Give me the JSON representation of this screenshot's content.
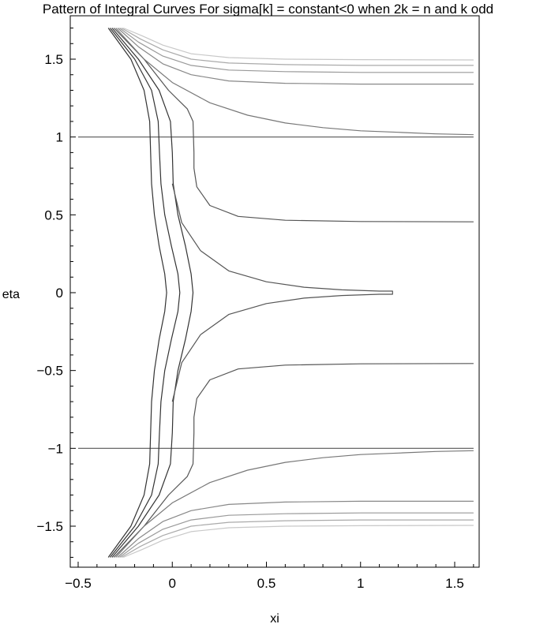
{
  "chart_data": {
    "type": "line",
    "title": "Pattern of Integral Curves For  sigma[k] = constant<0 when 2k = n and k odd",
    "xlabel": "xi",
    "ylabel": "eta",
    "xlim": [
      -0.5,
      1.6
    ],
    "ylim": [
      -1.75,
      1.72
    ],
    "x_ticks": [
      {
        "value": -0.5,
        "label": "−0.5"
      },
      {
        "value": 0,
        "label": "0"
      },
      {
        "value": 0.5,
        "label": "0.5"
      },
      {
        "value": 1,
        "label": "1"
      },
      {
        "value": 1.5,
        "label": "1.5"
      }
    ],
    "y_ticks": [
      {
        "value": -1.5,
        "label": "−1.5"
      },
      {
        "value": -1,
        "label": "−1"
      },
      {
        "value": -0.5,
        "label": "−0.5"
      },
      {
        "value": 0,
        "label": "0"
      },
      {
        "value": 0.5,
        "label": "0.5"
      },
      {
        "value": 1,
        "label": "1"
      },
      {
        "value": 1.5,
        "label": "1.5"
      }
    ],
    "grid": false,
    "legend": "none",
    "colors": {
      "axes": "#000000",
      "curve_dark": "#333333",
      "curve_mid": "#666666",
      "curve_light": "#aaaaaa",
      "curve_lighter": "#c8c8c8"
    },
    "series": [
      {
        "color": "#555555",
        "points": [
          [
            -0.5,
            1.0
          ],
          [
            1.6,
            1.0
          ]
        ]
      },
      {
        "color": "#555555",
        "points": [
          [
            -0.5,
            -1.0
          ],
          [
            1.6,
            -1.0
          ]
        ]
      },
      {
        "color": "#333333",
        "points": [
          [
            -0.34,
            1.7
          ],
          [
            -0.22,
            1.5
          ],
          [
            -0.15,
            1.3
          ],
          [
            -0.12,
            1.1
          ],
          [
            -0.115,
            0.9
          ],
          [
            -0.11,
            0.7
          ],
          [
            -0.095,
            0.5
          ],
          [
            -0.07,
            0.3
          ],
          [
            -0.04,
            0.12
          ],
          [
            -0.03,
            0.0
          ],
          [
            -0.04,
            -0.12
          ],
          [
            -0.07,
            -0.3
          ],
          [
            -0.095,
            -0.5
          ],
          [
            -0.11,
            -0.7
          ],
          [
            -0.115,
            -0.9
          ],
          [
            -0.12,
            -1.1
          ],
          [
            -0.15,
            -1.3
          ],
          [
            -0.22,
            -1.5
          ],
          [
            -0.34,
            -1.7
          ]
        ]
      },
      {
        "color": "#333333",
        "points": [
          [
            -0.33,
            1.7
          ],
          [
            -0.2,
            1.5
          ],
          [
            -0.11,
            1.3
          ],
          [
            -0.075,
            1.1
          ],
          [
            -0.068,
            0.9
          ],
          [
            -0.06,
            0.7
          ],
          [
            -0.04,
            0.5
          ],
          [
            -0.005,
            0.3
          ],
          [
            0.03,
            0.12
          ],
          [
            0.04,
            0.0
          ],
          [
            0.03,
            -0.12
          ],
          [
            -0.005,
            -0.3
          ],
          [
            -0.04,
            -0.5
          ],
          [
            -0.06,
            -0.7
          ],
          [
            -0.068,
            -0.9
          ],
          [
            -0.075,
            -1.1
          ],
          [
            -0.11,
            -1.3
          ],
          [
            -0.2,
            -1.5
          ],
          [
            -0.33,
            -1.7
          ]
        ]
      },
      {
        "color": "#333333",
        "points": [
          [
            -0.32,
            1.7
          ],
          [
            -0.18,
            1.5
          ],
          [
            -0.07,
            1.3
          ],
          [
            -0.01,
            1.1
          ],
          [
            0.0,
            0.9
          ],
          [
            0.005,
            0.7
          ],
          [
            0.03,
            0.5
          ],
          [
            0.07,
            0.3
          ],
          [
            0.1,
            0.12
          ],
          [
            0.11,
            0.0
          ],
          [
            0.1,
            -0.12
          ],
          [
            0.07,
            -0.3
          ],
          [
            0.03,
            -0.5
          ],
          [
            0.005,
            -0.7
          ],
          [
            0.0,
            -0.9
          ],
          [
            -0.01,
            -1.1
          ],
          [
            -0.07,
            -1.3
          ],
          [
            -0.18,
            -1.5
          ],
          [
            -0.32,
            -1.7
          ]
        ]
      },
      {
        "color": "#555555",
        "points": [
          [
            -0.31,
            1.7
          ],
          [
            -0.15,
            1.5
          ],
          [
            -0.02,
            1.3
          ],
          [
            0.08,
            1.18
          ],
          [
            0.11,
            1.1
          ],
          [
            0.115,
            0.9
          ],
          [
            0.115,
            0.8
          ],
          [
            0.13,
            0.68
          ],
          [
            0.2,
            0.56
          ],
          [
            0.35,
            0.49
          ],
          [
            0.6,
            0.465
          ],
          [
            1.0,
            0.457
          ],
          [
            1.6,
            0.455
          ]
        ]
      },
      {
        "color": "#555555",
        "points": [
          [
            -0.31,
            -1.7
          ],
          [
            -0.15,
            -1.5
          ],
          [
            -0.02,
            -1.3
          ],
          [
            0.08,
            -1.18
          ],
          [
            0.11,
            -1.1
          ],
          [
            0.115,
            -0.9
          ],
          [
            0.115,
            -0.8
          ],
          [
            0.13,
            -0.68
          ],
          [
            0.2,
            -0.56
          ],
          [
            0.35,
            -0.49
          ],
          [
            0.6,
            -0.465
          ],
          [
            1.0,
            -0.457
          ],
          [
            1.6,
            -0.455
          ]
        ]
      },
      {
        "color": "#555555",
        "points": [
          [
            0.0,
            -0.7
          ],
          [
            0.05,
            -0.45
          ],
          [
            0.15,
            -0.27
          ],
          [
            0.3,
            -0.14
          ],
          [
            0.5,
            -0.07
          ],
          [
            0.7,
            -0.035
          ],
          [
            0.9,
            -0.018
          ],
          [
            1.1,
            -0.01
          ],
          [
            1.17,
            -0.01
          ],
          [
            1.17,
            0.01
          ],
          [
            1.1,
            0.01
          ],
          [
            0.9,
            0.018
          ],
          [
            0.7,
            0.035
          ],
          [
            0.5,
            0.07
          ],
          [
            0.3,
            0.14
          ],
          [
            0.15,
            0.27
          ],
          [
            0.05,
            0.45
          ],
          [
            0.0,
            0.7
          ]
        ]
      },
      {
        "color": "#777777",
        "points": [
          [
            -0.3,
            1.7
          ],
          [
            -0.15,
            1.5
          ],
          [
            0.0,
            1.35
          ],
          [
            0.2,
            1.22
          ],
          [
            0.4,
            1.14
          ],
          [
            0.6,
            1.09
          ],
          [
            0.8,
            1.06
          ],
          [
            1.0,
            1.04
          ],
          [
            1.2,
            1.03
          ],
          [
            1.4,
            1.02
          ],
          [
            1.6,
            1.015
          ]
        ]
      },
      {
        "color": "#777777",
        "points": [
          [
            -0.3,
            -1.7
          ],
          [
            -0.15,
            -1.5
          ],
          [
            0.0,
            -1.35
          ],
          [
            0.2,
            -1.22
          ],
          [
            0.4,
            -1.14
          ],
          [
            0.6,
            -1.09
          ],
          [
            0.8,
            -1.06
          ],
          [
            1.0,
            -1.04
          ],
          [
            1.2,
            -1.03
          ],
          [
            1.4,
            -1.02
          ],
          [
            1.6,
            -1.015
          ]
        ]
      },
      {
        "color": "#888888",
        "points": [
          [
            -0.29,
            1.7
          ],
          [
            -0.18,
            1.58
          ],
          [
            -0.05,
            1.47
          ],
          [
            0.1,
            1.4
          ],
          [
            0.3,
            1.36
          ],
          [
            0.6,
            1.345
          ],
          [
            1.0,
            1.34
          ],
          [
            1.6,
            1.34
          ]
        ]
      },
      {
        "color": "#888888",
        "points": [
          [
            -0.29,
            -1.7
          ],
          [
            -0.18,
            -1.58
          ],
          [
            -0.05,
            -1.47
          ],
          [
            0.1,
            -1.4
          ],
          [
            0.3,
            -1.36
          ],
          [
            0.6,
            -1.345
          ],
          [
            1.0,
            -1.34
          ],
          [
            1.6,
            -1.34
          ]
        ]
      },
      {
        "color": "#999999",
        "points": [
          [
            -0.28,
            1.7
          ],
          [
            -0.18,
            1.61
          ],
          [
            -0.05,
            1.52
          ],
          [
            0.1,
            1.46
          ],
          [
            0.3,
            1.43
          ],
          [
            0.6,
            1.42
          ],
          [
            1.0,
            1.415
          ],
          [
            1.6,
            1.415
          ]
        ]
      },
      {
        "color": "#999999",
        "points": [
          [
            -0.28,
            -1.7
          ],
          [
            -0.18,
            -1.61
          ],
          [
            -0.05,
            -1.52
          ],
          [
            0.1,
            -1.46
          ],
          [
            0.3,
            -1.43
          ],
          [
            0.6,
            -1.42
          ],
          [
            1.0,
            -1.415
          ],
          [
            1.6,
            -1.415
          ]
        ]
      },
      {
        "color": "#aaaaaa",
        "points": [
          [
            -0.27,
            1.7
          ],
          [
            -0.17,
            1.63
          ],
          [
            -0.05,
            1.56
          ],
          [
            0.1,
            1.5
          ],
          [
            0.3,
            1.475
          ],
          [
            0.6,
            1.465
          ],
          [
            1.0,
            1.46
          ],
          [
            1.6,
            1.46
          ]
        ]
      },
      {
        "color": "#aaaaaa",
        "points": [
          [
            -0.27,
            -1.7
          ],
          [
            -0.17,
            -1.63
          ],
          [
            -0.05,
            -1.56
          ],
          [
            0.1,
            -1.5
          ],
          [
            0.3,
            -1.475
          ],
          [
            0.6,
            -1.465
          ],
          [
            1.0,
            -1.46
          ],
          [
            1.6,
            -1.46
          ]
        ]
      },
      {
        "color": "#c8c8c8",
        "points": [
          [
            -0.26,
            1.7
          ],
          [
            -0.16,
            1.65
          ],
          [
            -0.05,
            1.59
          ],
          [
            0.1,
            1.535
          ],
          [
            0.3,
            1.51
          ],
          [
            0.6,
            1.5
          ],
          [
            1.0,
            1.497
          ],
          [
            1.6,
            1.495
          ]
        ]
      },
      {
        "color": "#c8c8c8",
        "points": [
          [
            -0.26,
            -1.7
          ],
          [
            -0.16,
            -1.65
          ],
          [
            -0.05,
            -1.59
          ],
          [
            0.1,
            -1.535
          ],
          [
            0.3,
            -1.51
          ],
          [
            0.6,
            -1.5
          ],
          [
            1.0,
            -1.497
          ],
          [
            1.6,
            -1.495
          ]
        ]
      }
    ]
  }
}
